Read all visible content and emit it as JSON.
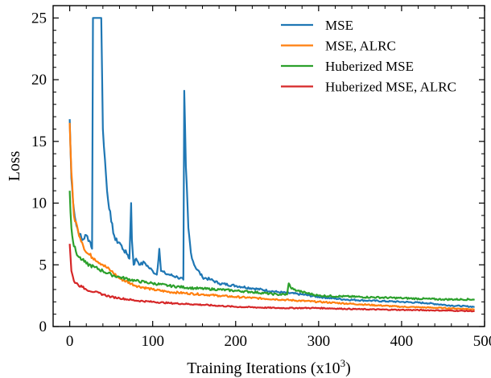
{
  "chart_data": {
    "type": "line",
    "xlabel": "Training Iterations (x10",
    "xlabel_sup": "3",
    "xlabel_close": ")",
    "ylabel": "Loss",
    "xlim": [
      -20,
      500
    ],
    "ylim": [
      0,
      26
    ],
    "xticks": [
      0,
      100,
      200,
      300,
      400,
      500
    ],
    "yticks": [
      0,
      5,
      10,
      15,
      20,
      25
    ],
    "legend_position": "top-right",
    "series": [
      {
        "name": "MSE",
        "color": "#1f77b4",
        "x": [
          0,
          2,
          5,
          8,
          12,
          15,
          20,
          25,
          27,
          28,
          30,
          38,
          40,
          45,
          50,
          55,
          60,
          65,
          70,
          72,
          74,
          75,
          77,
          80,
          85,
          90,
          95,
          100,
          105,
          108,
          110,
          115,
          120,
          130,
          137,
          138,
          140,
          143,
          146,
          150,
          160,
          170,
          180,
          200,
          220,
          250,
          280,
          300,
          330,
          360,
          400,
          430,
          460,
          488
        ],
        "y": [
          16.8,
          12.0,
          9.5,
          8.2,
          7.5,
          7.0,
          7.4,
          6.8,
          6.3,
          25.0,
          25.0,
          25.0,
          16.0,
          11.0,
          8.5,
          7.0,
          6.8,
          6.2,
          5.8,
          5.5,
          10.0,
          7.0,
          5.0,
          5.5,
          5.0,
          5.2,
          4.8,
          4.5,
          4.2,
          6.3,
          4.5,
          4.3,
          4.2,
          4.0,
          3.8,
          19.1,
          13.0,
          8.0,
          6.0,
          5.0,
          4.0,
          3.8,
          3.5,
          3.3,
          3.1,
          2.8,
          2.6,
          2.4,
          2.2,
          2.1,
          2.0,
          1.9,
          1.7,
          1.6
        ]
      },
      {
        "name": "MSE, ALRC",
        "color": "#ff7f0e",
        "x": [
          0,
          2,
          5,
          10,
          15,
          20,
          30,
          40,
          50,
          60,
          80,
          100,
          120,
          140,
          160,
          180,
          200,
          250,
          300,
          350,
          400,
          450,
          488
        ],
        "y": [
          16.5,
          12.5,
          9.0,
          7.8,
          6.8,
          6.0,
          5.5,
          5.0,
          4.5,
          3.9,
          3.3,
          3.0,
          2.8,
          2.7,
          2.6,
          2.5,
          2.4,
          2.2,
          2.0,
          1.8,
          1.6,
          1.5,
          1.4
        ]
      },
      {
        "name": "Huberized MSE",
        "color": "#2ca02c",
        "x": [
          0,
          2,
          5,
          10,
          15,
          20,
          30,
          40,
          50,
          60,
          80,
          100,
          120,
          150,
          180,
          200,
          220,
          250,
          262,
          264,
          266,
          270,
          275,
          280,
          300,
          350,
          400,
          450,
          488
        ],
        "y": [
          11.0,
          8.0,
          6.5,
          5.7,
          5.4,
          5.1,
          4.8,
          4.5,
          4.2,
          4.0,
          3.7,
          3.5,
          3.3,
          3.1,
          3.0,
          2.9,
          2.8,
          2.6,
          2.6,
          3.5,
          3.2,
          3.0,
          2.9,
          2.8,
          2.5,
          2.4,
          2.3,
          2.2,
          2.2
        ]
      },
      {
        "name": "Huberized MSE, ALRC",
        "color": "#d62728",
        "x": [
          0,
          2,
          5,
          10,
          15,
          20,
          30,
          40,
          50,
          60,
          80,
          100,
          120,
          150,
          200,
          250,
          300,
          350,
          400,
          450,
          488
        ],
        "y": [
          6.7,
          4.5,
          3.7,
          3.4,
          3.2,
          3.0,
          2.8,
          2.6,
          2.4,
          2.3,
          2.1,
          2.0,
          1.9,
          1.8,
          1.6,
          1.5,
          1.5,
          1.4,
          1.35,
          1.3,
          1.25
        ]
      }
    ]
  }
}
